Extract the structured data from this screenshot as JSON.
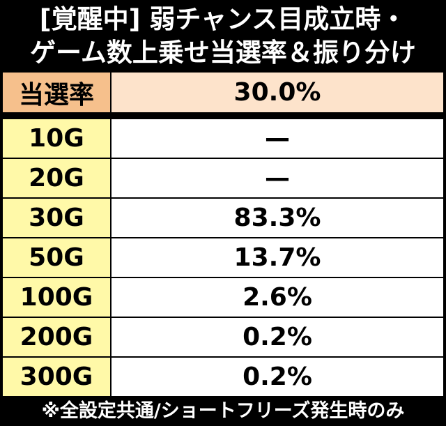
{
  "header": {
    "title_lines": [
      "[覚醒中] 弱チャンス目成立時・",
      "ゲーム数上乗せ当選率＆振り分け"
    ]
  },
  "summary": {
    "label": "当選率",
    "value": "30.0%"
  },
  "table": {
    "rows": [
      [
        "10G",
        "—"
      ],
      [
        "20G",
        "—"
      ],
      [
        "30G",
        "83.3%"
      ],
      [
        "50G",
        "13.7%"
      ],
      [
        "100G",
        "2.6%"
      ],
      [
        "200G",
        "0.2%"
      ],
      [
        "300G",
        "0.2%"
      ]
    ]
  },
  "footnote": "※全設定共通/ショートフリーズ発生時のみ"
}
